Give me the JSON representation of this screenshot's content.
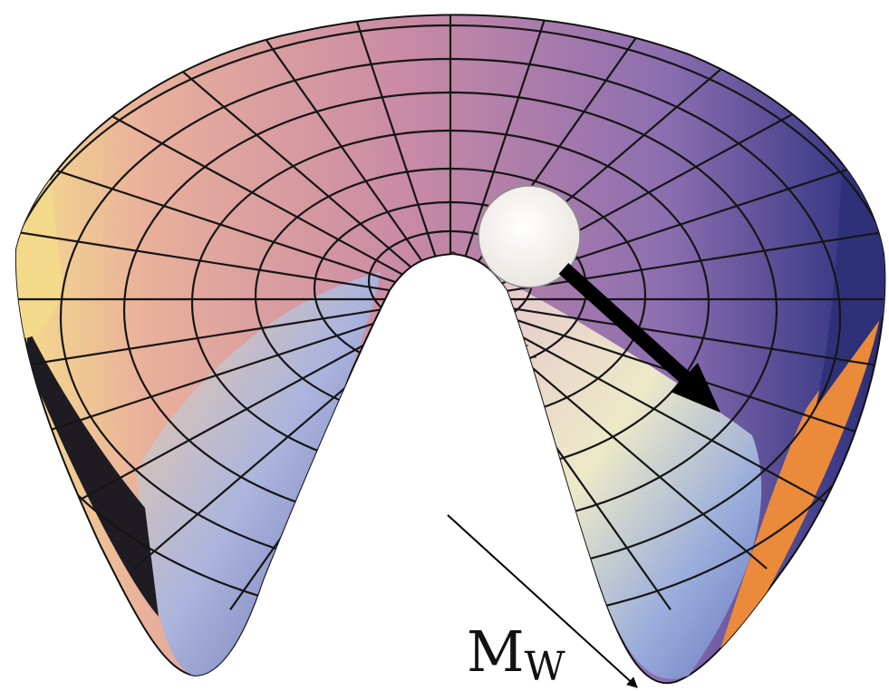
{
  "figure": {
    "label_main": "M",
    "label_sub": "W"
  },
  "colors": {
    "rim_left": "#f2d98e",
    "rim_mid_left": "#e4a89a",
    "rim_center": "#c88ca8",
    "rim_right": "#7a6aa8",
    "rim_far_right": "#33357a",
    "inner_blue": "#6f82c4",
    "inner_light": "#c9d8ef",
    "peak_red": "#b24a3e",
    "orange_band": "#e9883a",
    "ball": "#f3f0ec",
    "arrow": "#000000",
    "grid": "#1a1a1a"
  },
  "icons": {
    "ball": "ball-icon",
    "arrow": "down-right-arrow-icon"
  }
}
